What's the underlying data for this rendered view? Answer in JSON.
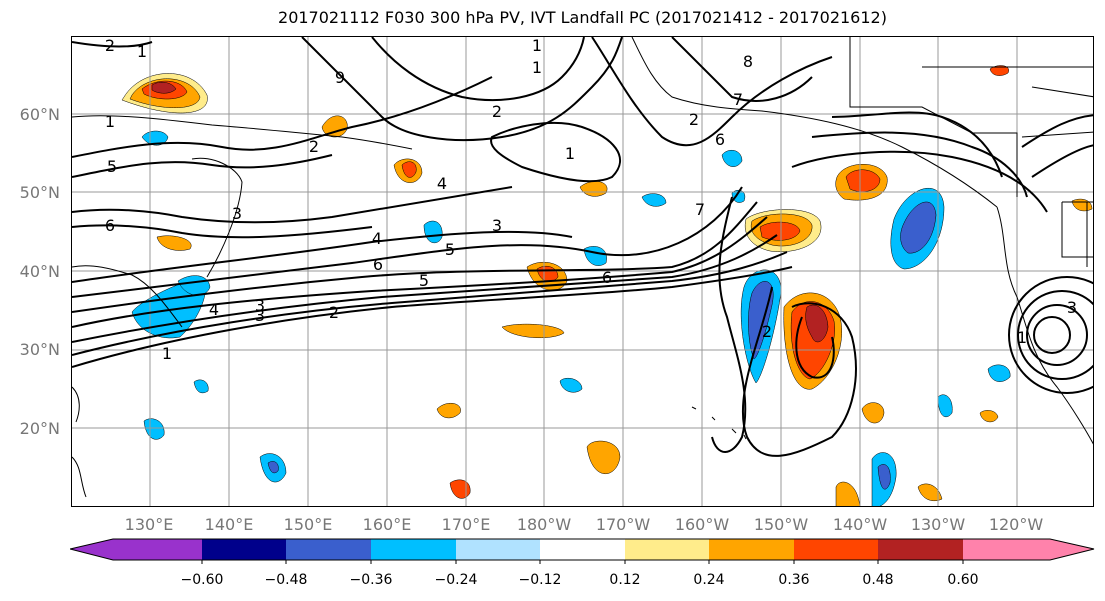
{
  "title": "2017021112 F030 300 hPa PV, IVT Landfall PC (2017021412 - 2017021612)",
  "lat_labels": [
    "60°N",
    "50°N",
    "40°N",
    "30°N",
    "20°N"
  ],
  "lon_labels": [
    "130°E",
    "140°E",
    "150°E",
    "160°E",
    "170°E",
    "180°W",
    "170°W",
    "160°W",
    "150°W",
    "140°W",
    "130°W",
    "120°W"
  ],
  "colorbar": {
    "colors": [
      "#9932cc",
      "#00008b",
      "#3a5fcd",
      "#00bfff",
      "#b0e2ff",
      "#ffffff",
      "#ffec8b",
      "#ffa500",
      "#ff4500",
      "#b22222",
      "#ff82ab"
    ],
    "tick_labels": [
      "−0.60",
      "−0.48",
      "−0.36",
      "−0.24",
      "−0.12",
      "0.12",
      "0.24",
      "0.36",
      "0.48",
      "0.60"
    ]
  },
  "contour_labels": [
    "2",
    "1",
    "9",
    "1",
    "3",
    "2",
    "1",
    "8",
    "7",
    "6",
    "5",
    "4",
    "3",
    "6",
    "5",
    "4",
    "3",
    "2",
    "1",
    "6",
    "5",
    "6",
    "4",
    "3",
    "2",
    "1",
    "7",
    "2",
    "1",
    "3",
    "1",
    "2"
  ]
}
